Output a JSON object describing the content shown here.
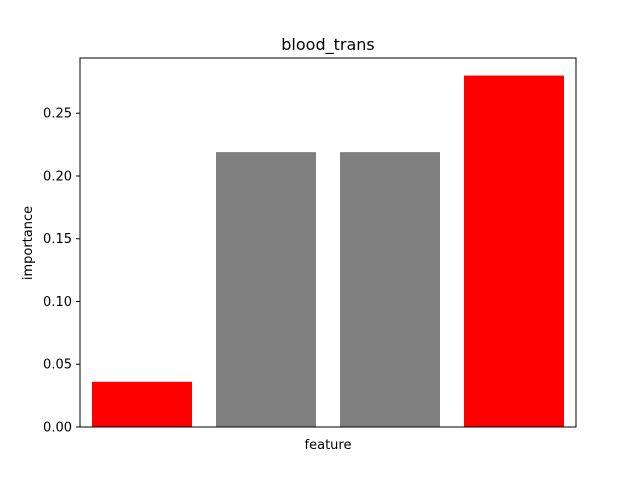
{
  "chart_data": {
    "type": "bar",
    "title": "blood_trans",
    "xlabel": "feature",
    "ylabel": "importance",
    "categories": [
      "",
      "",
      "",
      ""
    ],
    "values": [
      0.036,
      0.219,
      0.219,
      0.28
    ],
    "bar_colors": [
      "#ff0000",
      "#808080",
      "#808080",
      "#ff0000"
    ],
    "ylim": [
      0,
      0.294
    ],
    "yticks": [
      0.0,
      0.05,
      0.1,
      0.15,
      0.2,
      0.25
    ],
    "ytick_labels": [
      "0.00",
      "0.05",
      "0.10",
      "0.15",
      "0.20",
      "0.25"
    ],
    "grid": false,
    "legend": "none"
  }
}
